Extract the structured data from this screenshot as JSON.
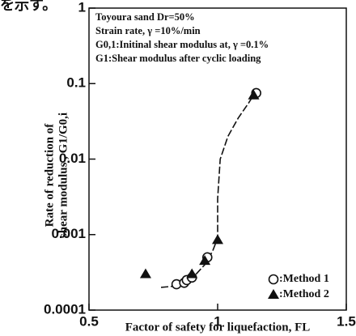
{
  "header_fragment": "を示す。",
  "chart_data": {
    "type": "scatter",
    "notes": [
      "Toyoura sand Dr=50%",
      "Strain rate, γ =10%/min",
      "G0,1:Initinal shear modulus at, γ =0.1%",
      "G1:Shear modulus after cyclic loading"
    ],
    "ylabel": [
      "Rate of reduction of",
      "shear modulus , G1/G0,i"
    ],
    "xlabel": "Factor of safety for liquefaction, FL",
    "xlim": [
      0.5,
      1.5
    ],
    "xticks": [
      0.5,
      1,
      1.5
    ],
    "ylim": [
      0.0001,
      1
    ],
    "yticks": [
      0.0001,
      0.001,
      0.01,
      0.1,
      1
    ],
    "ylog": true,
    "legend": "lower right",
    "series": [
      {
        "name": ":Method 1",
        "marker": "circle",
        "color": "#111",
        "x": [
          0.84,
          0.87,
          0.88,
          0.9,
          0.96,
          1.15
        ],
        "values": [
          0.00022,
          0.00023,
          0.00025,
          0.00027,
          0.0005,
          0.075
        ]
      },
      {
        "name": ":Method 2",
        "marker": "triangle",
        "color": "#111",
        "x": [
          0.72,
          0.9,
          0.95,
          1.0,
          1.14
        ],
        "values": [
          0.0003,
          0.0003,
          0.00045,
          0.00085,
          0.07
        ]
      }
    ],
    "fit_curve": {
      "x": [
        0.78,
        0.85,
        0.9,
        0.95,
        0.98,
        1.0,
        1.0,
        1.01,
        1.04,
        1.08,
        1.12,
        1.15
      ],
      "values": [
        0.0002,
        0.00021,
        0.00026,
        0.0004,
        0.0006,
        0.0009,
        0.003,
        0.01,
        0.02,
        0.035,
        0.055,
        0.08
      ]
    }
  }
}
